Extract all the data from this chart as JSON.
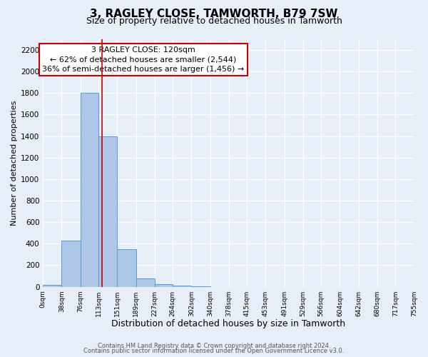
{
  "title1": "3, RAGLEY CLOSE, TAMWORTH, B79 7SW",
  "title2": "Size of property relative to detached houses in Tamworth",
  "xlabel": "Distribution of detached houses by size in Tamworth",
  "ylabel": "Number of detached properties",
  "bin_edges": [
    0,
    38,
    76,
    113,
    151,
    189,
    227,
    264,
    302,
    340,
    378,
    415,
    453,
    491,
    529,
    566,
    604,
    642,
    680,
    717,
    755
  ],
  "bin_labels": [
    "0sqm",
    "38sqm",
    "76sqm",
    "113sqm",
    "151sqm",
    "189sqm",
    "227sqm",
    "264sqm",
    "302sqm",
    "340sqm",
    "378sqm",
    "415sqm",
    "453sqm",
    "491sqm",
    "529sqm",
    "566sqm",
    "604sqm",
    "642sqm",
    "680sqm",
    "717sqm",
    "755sqm"
  ],
  "bar_heights": [
    20,
    430,
    1800,
    1400,
    350,
    75,
    25,
    10,
    5,
    0,
    0,
    0,
    0,
    0,
    0,
    0,
    0,
    0,
    0,
    0
  ],
  "bar_color": "#aec6e8",
  "bar_edge_color": "#5b9bd5",
  "property_line_x": 120,
  "property_line_color": "#cc0000",
  "annotation_line1": "3 RAGLEY CLOSE: 120sqm",
  "annotation_line2": "← 62% of detached houses are smaller (2,544)",
  "annotation_line3": "36% of semi-detached houses are larger (1,456) →",
  "ylim": [
    0,
    2300
  ],
  "yticks": [
    0,
    200,
    400,
    600,
    800,
    1000,
    1200,
    1400,
    1600,
    1800,
    2000,
    2200
  ],
  "bg_color": "#e8eef7",
  "plot_bg_color": "#e8eef7",
  "grid_color": "#ffffff",
  "footer_line1": "Contains HM Land Registry data © Crown copyright and database right 2024.",
  "footer_line2": "Contains public sector information licensed under the Open Government Licence v3.0.",
  "title1_fontsize": 11,
  "title2_fontsize": 9,
  "xlabel_fontsize": 9,
  "ylabel_fontsize": 8,
  "annotation_fontsize": 8,
  "footer_fontsize": 6
}
